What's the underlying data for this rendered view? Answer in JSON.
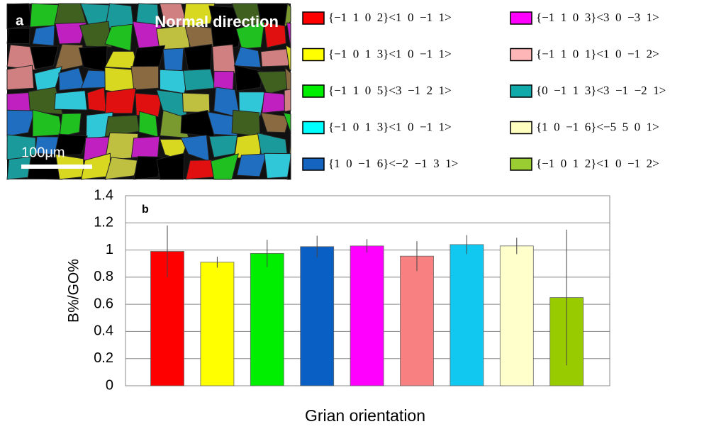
{
  "micrograph": {
    "panel_label": "a",
    "caption": "Normal direction",
    "scale_bar": "100μm"
  },
  "legend": {
    "items": [
      {
        "label": "{−1  1  0  2}<1  0  −1  1>",
        "color": "#ff0000"
      },
      {
        "label": "{−1  0  1  3}<1  0  −1  1>",
        "color": "#ffff00"
      },
      {
        "label": "{−1  1  0  5}<3  −1  2  1>",
        "color": "#00ee00"
      },
      {
        "label": "{−1  0  1  3}<1  0  −1  1>",
        "color": "#00ffff"
      },
      {
        "label": "{1  0  −1  6}<−2  −1  3  1>",
        "color": "#1565c0"
      },
      {
        "label": "{−1  1  0  3}<3  0  −3  1>",
        "color": "#ff00ff"
      },
      {
        "label": "{−1  1  0  1}<1  0  −1  2>",
        "color": "#ffb6b6"
      },
      {
        "label": "{0  −1  1  3}<3  −1  −2  1>",
        "color": "#11aaaa"
      },
      {
        "label": "{1  0  −1  6}<−5  5  0  1>",
        "color": "#ffffc0"
      },
      {
        "label": "{−1  0  1  2}<1  0  −1  2>",
        "color": "#9acd32"
      }
    ]
  },
  "chart_data": {
    "type": "bar",
    "panel_label": "b",
    "y_label": "B%/GO%",
    "x_label": "Grian orientation",
    "values": [
      0.99,
      0.91,
      0.975,
      1.025,
      1.03,
      0.955,
      1.04,
      1.03,
      0.65
    ],
    "errors": [
      0.19,
      0.04,
      0.1,
      0.08,
      0.05,
      0.11,
      0.07,
      0.06,
      0.5
    ],
    "colors": [
      "#ff0000",
      "#ffff00",
      "#00ee00",
      "#0a5fc4",
      "#ff00ff",
      "#f88080",
      "#10c8f0",
      "#ffffcc",
      "#99cc00"
    ],
    "ylim": [
      0,
      1.4
    ],
    "yticks": [
      0,
      0.2,
      0.4,
      0.6,
      0.8,
      1,
      1.2,
      1.4
    ],
    "grid": true
  }
}
